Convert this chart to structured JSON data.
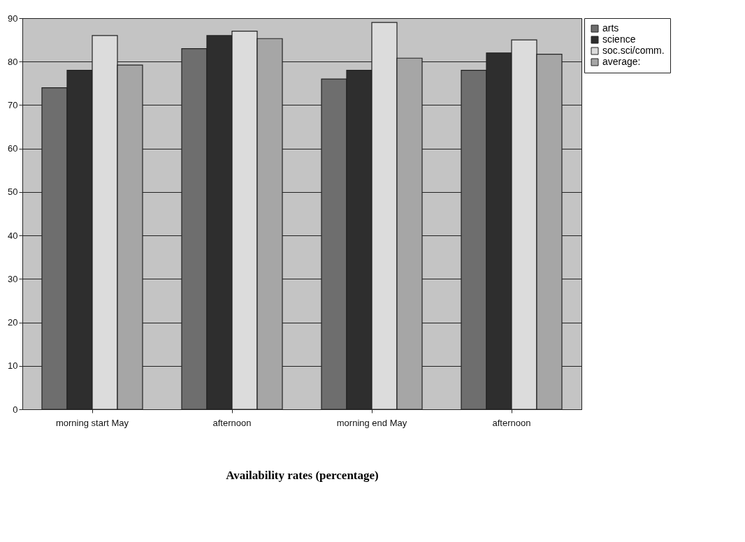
{
  "chart_data": {
    "type": "bar",
    "xlabel": "Availability rates (percentage)",
    "categories": [
      "morning start May",
      "afternoon",
      "morning end May",
      "afternoon"
    ],
    "series": [
      {
        "name": "arts",
        "color": "#6e6e6e",
        "values": [
          74,
          83,
          76,
          78
        ]
      },
      {
        "name": "science",
        "color": "#2e2e2e",
        "values": [
          78,
          86,
          78,
          82
        ]
      },
      {
        "name": "soc.sci/comm.",
        "color": "#dcdcdc",
        "values": [
          86,
          87,
          89,
          85
        ]
      },
      {
        "name": "average:",
        "color": "#a6a6a6",
        "values": [
          79.2,
          85.3,
          80.8,
          81.7
        ]
      }
    ],
    "ylim": [
      0,
      90
    ],
    "yticks": [
      0,
      10,
      20,
      30,
      40,
      50,
      60,
      70,
      80,
      90
    ],
    "grid": "y",
    "legend": "right"
  }
}
